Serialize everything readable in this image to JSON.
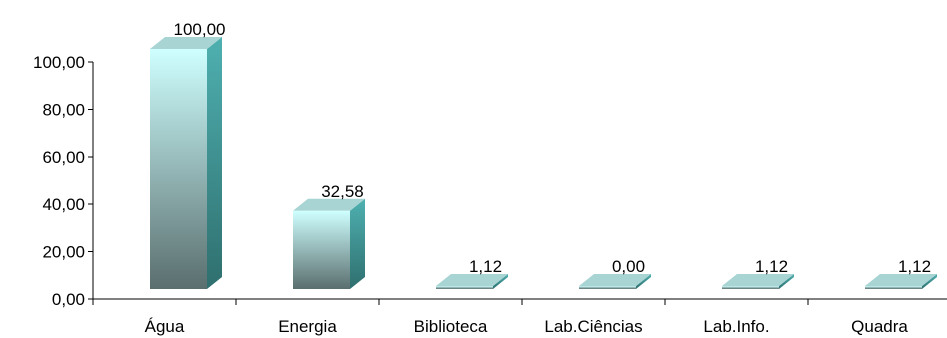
{
  "chart_data": {
    "type": "bar",
    "categories": [
      "Água",
      "Energia",
      "Biblioteca",
      "Lab.Ciências",
      "Lab.Info.",
      "Quadra"
    ],
    "values": [
      100.0,
      32.58,
      1.12,
      0.0,
      1.12,
      1.12
    ],
    "value_labels": [
      "100,00",
      "32,58",
      "1,12",
      "0,00",
      "1,12",
      "1,12"
    ],
    "yticks": [
      "0,00",
      "20,00",
      "40,00",
      "60,00",
      "80,00",
      "100,00"
    ],
    "ytick_values": [
      0,
      20,
      40,
      60,
      80,
      100
    ],
    "ylim": [
      0,
      100
    ],
    "grid": false,
    "legend": "none",
    "style": "3d-column",
    "colors": {
      "front_top": "#cfffff",
      "front_bottom": "#5a6e6e",
      "side": "#3a8c8c",
      "top": "#a8d4d4"
    }
  }
}
